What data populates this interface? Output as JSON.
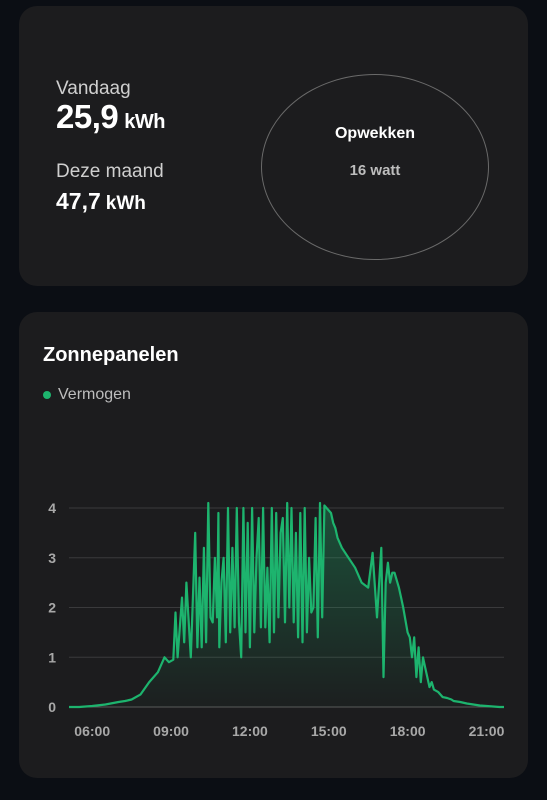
{
  "energy": {
    "today_label": "Vandaag",
    "today_value": "25,9",
    "today_unit": "kWh",
    "month_label": "Deze maand",
    "month_value": "47,7",
    "month_unit": "kWh",
    "gauge_title": "Opwekken",
    "gauge_value": "16 watt"
  },
  "chart": {
    "title": "Zonnepanelen",
    "legend": "Vermogen",
    "line_color": "#1db46e"
  },
  "chart_data": {
    "type": "area",
    "title": "Zonnepanelen",
    "xlabel": "",
    "ylabel": "",
    "x_ticks": [
      "06:00",
      "09:00",
      "12:00",
      "15:00",
      "18:00",
      "21:00"
    ],
    "y_ticks": [
      0,
      1,
      2,
      3,
      4
    ],
    "xlim": [
      "05:07",
      "21:40"
    ],
    "ylim": [
      0,
      4
    ],
    "grid": true,
    "legend_position": "top-left",
    "series": [
      {
        "name": "Vermogen",
        "x": [
          "05:07",
          "05:30",
          "06:00",
          "06:30",
          "07:00",
          "07:15",
          "07:30",
          "07:50",
          "08:10",
          "08:30",
          "08:45",
          "08:55",
          "09:05",
          "09:10",
          "09:15",
          "09:25",
          "09:30",
          "09:35",
          "09:45",
          "09:55",
          "10:00",
          "10:05",
          "10:10",
          "10:15",
          "10:20",
          "10:25",
          "10:30",
          "10:35",
          "10:40",
          "10:45",
          "10:48",
          "10:50",
          "10:55",
          "11:00",
          "11:05",
          "11:10",
          "11:15",
          "11:20",
          "11:25",
          "11:30",
          "11:35",
          "11:40",
          "11:45",
          "11:50",
          "11:55",
          "12:00",
          "12:05",
          "12:10",
          "12:15",
          "12:20",
          "12:25",
          "12:30",
          "12:35",
          "12:40",
          "12:45",
          "12:50",
          "12:55",
          "13:00",
          "13:05",
          "13:10",
          "13:15",
          "13:20",
          "13:25",
          "13:30",
          "13:35",
          "13:40",
          "13:45",
          "13:50",
          "13:55",
          "14:00",
          "14:05",
          "14:10",
          "14:15",
          "14:20",
          "14:25",
          "14:30",
          "14:35",
          "14:40",
          "14:45",
          "14:50",
          "14:55",
          "15:00",
          "15:05",
          "15:10",
          "15:15",
          "15:20",
          "15:25",
          "15:30",
          "15:45",
          "16:00",
          "16:15",
          "16:30",
          "16:40",
          "16:50",
          "17:00",
          "17:05",
          "17:10",
          "17:15",
          "17:20",
          "17:25",
          "17:30",
          "17:40",
          "17:45",
          "17:50",
          "18:00",
          "18:05",
          "18:10",
          "18:15",
          "18:20",
          "18:25",
          "18:30",
          "18:35",
          "18:40",
          "18:45",
          "18:50",
          "18:55",
          "19:00",
          "19:10",
          "19:15",
          "19:20",
          "19:30",
          "19:40",
          "19:45",
          "20:00",
          "20:15",
          "20:30",
          "20:45",
          "21:00",
          "21:15",
          "21:30",
          "21:40"
        ],
        "values": [
          0,
          0,
          0.02,
          0.05,
          0.1,
          0.12,
          0.15,
          0.25,
          0.5,
          0.7,
          1.0,
          0.9,
          0.95,
          1.9,
          1.0,
          2.2,
          1.3,
          2.5,
          1.0,
          3.5,
          1.2,
          2.6,
          1.2,
          3.2,
          1.3,
          4.1,
          1.8,
          1.7,
          3.0,
          1.8,
          3.9,
          1.2,
          2.5,
          3.0,
          1.3,
          4.0,
          1.5,
          3.2,
          1.6,
          4.0,
          1.7,
          1.0,
          4.0,
          1.5,
          3.7,
          1.2,
          4.0,
          1.5,
          3.0,
          3.8,
          1.6,
          4.0,
          1.6,
          2.8,
          1.3,
          4.0,
          1.5,
          3.9,
          1.8,
          3.5,
          3.8,
          1.7,
          4.1,
          2.0,
          4.0,
          1.7,
          3.5,
          1.4,
          3.9,
          1.3,
          4.0,
          1.5,
          3.0,
          1.9,
          2.0,
          3.8,
          1.4,
          4.1,
          1.8,
          4.05,
          4.0,
          3.95,
          3.9,
          3.7,
          3.6,
          3.4,
          3.3,
          3.2,
          3.0,
          2.8,
          2.5,
          2.4,
          3.1,
          1.8,
          3.2,
          0.6,
          2.5,
          2.9,
          2.5,
          2.7,
          2.7,
          2.4,
          2.2,
          2.0,
          1.5,
          1.4,
          1.0,
          1.4,
          0.6,
          1.2,
          0.5,
          1.0,
          0.8,
          0.6,
          0.4,
          0.5,
          0.35,
          0.3,
          0.25,
          0.2,
          0.18,
          0.15,
          0.12,
          0.1,
          0.07,
          0.05,
          0.03,
          0.02,
          0.01,
          0.0,
          0.0
        ]
      }
    ]
  }
}
